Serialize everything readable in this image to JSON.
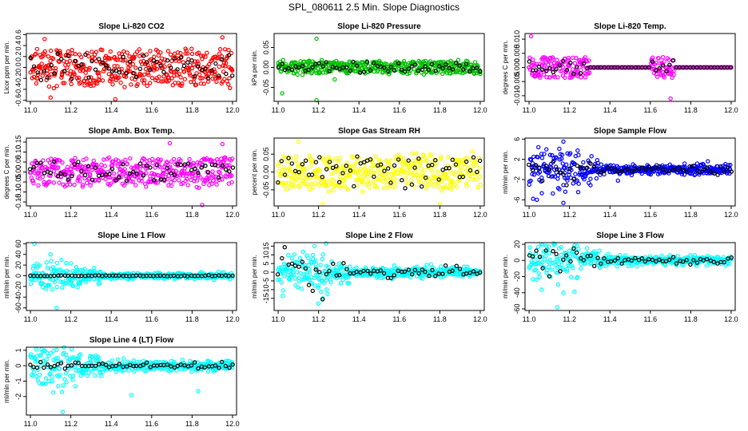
{
  "figure_title": "SPL_080611  2.5 Min. Slope Diagnostics",
  "colors": {
    "co2": "#ff0000",
    "pressure": "#00c000",
    "temp": "#ff00ff",
    "rh": "#ffff00",
    "sample": "#0000ff",
    "flow": "#00ffff",
    "highlight": "#000000"
  },
  "chart_data": [
    {
      "type": "scatter",
      "title": "Slope Li-820 CO2",
      "ylabel": "Licor ppm per min.",
      "xlim": [
        10.98,
        12.02
      ],
      "ylim": [
        -0.62,
        0.62
      ],
      "xticks": [
        11.0,
        11.2,
        11.4,
        11.6,
        11.8,
        12.0
      ],
      "xtick_labels": [
        "11.0",
        "11.2",
        "11.4",
        "11.6",
        "11.8",
        "12.0"
      ],
      "yticks": [
        -0.6,
        -0.4,
        -0.2,
        0.0,
        0.2,
        0.4,
        0.6
      ],
      "ytick_labels": [
        "-0.6",
        "-0.4",
        "-0.2",
        "0.0",
        "0.2",
        "0.4",
        "0.6"
      ],
      "series": [
        {
          "name": "all",
          "color": "#ff0000",
          "n": 420,
          "mode": "uniform",
          "spread": 0.25,
          "outliers": [
            [
              11.1,
              -0.55
            ],
            [
              11.42,
              -0.58
            ],
            [
              11.07,
              0.52
            ],
            [
              11.95,
              0.55
            ]
          ]
        },
        {
          "name": "highlight",
          "color": "#000000",
          "n": 60,
          "mode": "uniform",
          "spread": 0.18
        }
      ]
    },
    {
      "type": "scatter",
      "title": "Slope Li-820 Pressure",
      "ylabel": "kPa per min.",
      "xlim": [
        10.98,
        12.02
      ],
      "ylim": [
        -0.085,
        0.085
      ],
      "xticks": [
        11.0,
        11.2,
        11.4,
        11.6,
        11.8,
        12.0
      ],
      "xtick_labels": [
        "11.0",
        "11.2",
        "11.4",
        "11.6",
        "11.8",
        "12.0"
      ],
      "yticks": [
        -0.05,
        0.0,
        0.05
      ],
      "ytick_labels": [
        "-0.05",
        "0.00",
        "0.05"
      ],
      "series": [
        {
          "name": "all",
          "color": "#00c000",
          "n": 420,
          "mode": "uniform",
          "spread": 0.012,
          "outliers": [
            [
              11.19,
              0.072
            ],
            [
              11.19,
              -0.082
            ],
            [
              11.02,
              -0.065
            ],
            [
              11.28,
              -0.03
            ]
          ]
        },
        {
          "name": "highlight",
          "color": "#000000",
          "n": 60,
          "mode": "uniform",
          "spread": 0.01
        }
      ]
    },
    {
      "type": "scatter",
      "title": "Slope Li-820 Temp.",
      "ylabel": "degrees C per min.",
      "xlim": [
        10.98,
        12.02
      ],
      "ylim": [
        -0.012,
        0.012
      ],
      "xticks": [
        11.0,
        11.2,
        11.4,
        11.6,
        11.8,
        12.0
      ],
      "xtick_labels": [
        "11.0",
        "11.2",
        "11.4",
        "11.6",
        "11.8",
        "12.0"
      ],
      "yticks": [
        -0.01,
        -0.005,
        0.0,
        0.005,
        0.01
      ],
      "ytick_labels": [
        "-0.010",
        "-0.005",
        "0.000",
        "0.005",
        "0.010"
      ],
      "series": [
        {
          "name": "all",
          "color": "#ff00ff",
          "n": 420,
          "mode": "gaps",
          "spread": 0.0028,
          "flat_y": 0.0,
          "active": [
            [
              11.0,
              11.3
            ],
            [
              11.6,
              11.72
            ]
          ],
          "outliers": [
            [
              11.01,
              0.011
            ],
            [
              11.7,
              -0.011
            ]
          ]
        },
        {
          "name": "highlight",
          "color": "#000000",
          "n": 60,
          "mode": "gaps",
          "spread": 0.002,
          "flat_y": 0.0,
          "active": [
            [
              11.0,
              11.3
            ],
            [
              11.6,
              11.72
            ]
          ]
        }
      ]
    },
    {
      "type": "scatter",
      "title": "Slope Amb. Box Temp.",
      "ylabel": "degrees C per min.",
      "xlim": [
        10.98,
        12.02
      ],
      "ylim": [
        -0.17,
        0.17
      ],
      "xticks": [
        11.0,
        11.2,
        11.4,
        11.6,
        11.8,
        12.0
      ],
      "xtick_labels": [
        "11.0",
        "11.2",
        "11.4",
        "11.6",
        "11.8",
        "12.0"
      ],
      "yticks": [
        -0.15,
        -0.1,
        -0.05,
        0.0,
        0.05,
        0.1,
        0.15
      ],
      "ytick_labels": [
        "-0.15",
        "-0.10",
        "-0.05",
        "0.00",
        "0.05",
        "0.10",
        "0.15"
      ],
      "series": [
        {
          "name": "all",
          "color": "#ff00ff",
          "n": 420,
          "mode": "uniform",
          "spread": 0.05,
          "outliers": [
            [
              11.69,
              0.145
            ],
            [
              11.85,
              -0.165
            ],
            [
              11.95,
              0.14
            ]
          ]
        },
        {
          "name": "highlight",
          "color": "#000000",
          "n": 60,
          "mode": "uniform",
          "spread": 0.035
        }
      ]
    },
    {
      "type": "scatter",
      "title": "Slope Gas Stream RH",
      "ylabel": "percent per min.",
      "xlim": [
        10.98,
        12.02
      ],
      "ylim": [
        -0.095,
        0.095
      ],
      "xticks": [
        11.0,
        11.2,
        11.4,
        11.6,
        11.8,
        12.0
      ],
      "xtick_labels": [
        "11.0",
        "11.2",
        "11.4",
        "11.6",
        "11.8",
        "12.0"
      ],
      "yticks": [
        -0.05,
        0.0,
        0.05
      ],
      "ytick_labels": [
        "-0.05",
        "0.00",
        "0.05"
      ],
      "series": [
        {
          "name": "all",
          "color": "#ffff00",
          "n": 420,
          "mode": "uniform",
          "spread": 0.035,
          "outliers": [
            [
              11.1,
              0.085
            ],
            [
              11.22,
              -0.09
            ],
            [
              11.8,
              -0.09
            ]
          ]
        },
        {
          "name": "highlight",
          "color": "#000000",
          "n": 60,
          "mode": "uniform",
          "spread": 0.03
        }
      ]
    },
    {
      "type": "scatter",
      "title": "Slope Sample Flow",
      "ylabel": "ml/min per min.",
      "xlim": [
        10.98,
        12.02
      ],
      "ylim": [
        -7.2,
        6.2
      ],
      "xticks": [
        11.0,
        11.2,
        11.4,
        11.6,
        11.8,
        12.0
      ],
      "xtick_labels": [
        "11.0",
        "11.2",
        "11.4",
        "11.6",
        "11.8",
        "12.0"
      ],
      "yticks": [
        -6,
        -2,
        2,
        6
      ],
      "ytick_labels": [
        "-6",
        "-2",
        "2",
        "6"
      ],
      "series": [
        {
          "name": "all",
          "color": "#0000ff",
          "n": 420,
          "mode": "decay",
          "spread": 0.7,
          "outliers": [
            [
              11.17,
              5.5
            ],
            [
              11.02,
              -5.8
            ],
            [
              11.17,
              -6.6
            ],
            [
              11.15,
              -3.9
            ],
            [
              11.44,
              -2.2
            ]
          ]
        },
        {
          "name": "highlight",
          "color": "#000000",
          "n": 60,
          "mode": "decay",
          "spread": 0.5
        }
      ]
    },
    {
      "type": "scatter",
      "title": "Slope Line 1 Flow",
      "ylabel": "ml/min per min.",
      "xlim": [
        10.98,
        12.02
      ],
      "ylim": [
        -65,
        62
      ],
      "xticks": [
        11.0,
        11.2,
        11.4,
        11.6,
        11.8,
        12.0
      ],
      "xtick_labels": [
        "11.0",
        "11.2",
        "11.4",
        "11.6",
        "11.8",
        "12.0"
      ],
      "yticks": [
        -60,
        -40,
        -20,
        0,
        20,
        40,
        60
      ],
      "ytick_labels": [
        "-60",
        "-40",
        "-20",
        "0",
        "20",
        "40",
        "60"
      ],
      "series": [
        {
          "name": "all",
          "color": "#00ffff",
          "n": 420,
          "mode": "decay",
          "spread": 4,
          "outliers": [
            [
              11.02,
              60
            ],
            [
              11.1,
              40
            ],
            [
              11.13,
              -60
            ],
            [
              11.08,
              25
            ],
            [
              11.2,
              -15
            ]
          ]
        },
        {
          "name": "highlight",
          "color": "#000000",
          "n": 60,
          "mode": "flat",
          "spread": 0.5
        }
      ]
    },
    {
      "type": "scatter",
      "title": "Slope Line 2 Flow",
      "ylabel": "ml/min per min.",
      "xlim": [
        10.98,
        12.02
      ],
      "ylim": [
        -22,
        17
      ],
      "xticks": [
        11.0,
        11.2,
        11.4,
        11.6,
        11.8,
        12.0
      ],
      "xtick_labels": [
        "11.0",
        "11.2",
        "11.4",
        "11.6",
        "11.8",
        "12.0"
      ],
      "yticks": [
        -15,
        -10,
        -5,
        0,
        5,
        10,
        15
      ],
      "ytick_labels": [
        "-15",
        "-10",
        "-5",
        "0",
        "5",
        "10",
        "15"
      ],
      "series": [
        {
          "name": "all",
          "color": "#00ffff",
          "n": 420,
          "mode": "decay",
          "spread": 2,
          "outliers": [
            [
              11.18,
              15
            ],
            [
              11.2,
              -18
            ],
            [
              11.22,
              -15
            ],
            [
              11.15,
              8
            ],
            [
              11.24,
              -10
            ]
          ]
        },
        {
          "name": "highlight",
          "color": "#000000",
          "n": 60,
          "mode": "decay",
          "spread": 2
        }
      ]
    },
    {
      "type": "scatter",
      "title": "Slope Line 3 Flow",
      "ylabel": "ml/min per min.",
      "xlim": [
        10.98,
        12.02
      ],
      "ylim": [
        -62,
        22
      ],
      "xticks": [
        11.0,
        11.2,
        11.4,
        11.6,
        11.8,
        12.0
      ],
      "xtick_labels": [
        "11.0",
        "11.2",
        "11.4",
        "11.6",
        "11.8",
        "12.0"
      ],
      "yticks": [
        -60,
        -40,
        -20,
        0,
        20
      ],
      "ytick_labels": [
        "-60",
        "-40",
        "-20",
        "0",
        "20"
      ],
      "series": [
        {
          "name": "all",
          "color": "#00ffff",
          "n": 420,
          "mode": "decay",
          "spread": 4,
          "outliers": [
            [
              11.06,
              20
            ],
            [
              11.14,
              -58
            ],
            [
              11.17,
              -40
            ],
            [
              11.2,
              12
            ]
          ]
        },
        {
          "name": "highlight",
          "color": "#000000",
          "n": 60,
          "mode": "decay",
          "spread": 3
        }
      ]
    },
    {
      "type": "scatter",
      "title": "Slope Line 4 (LT) Flow",
      "ylabel": "ml/min per min.",
      "xlim": [
        10.98,
        12.02
      ],
      "ylim": [
        -3.2,
        1.2
      ],
      "xticks": [
        11.0,
        11.2,
        11.4,
        11.6,
        11.8,
        12.0
      ],
      "xtick_labels": [
        "11.0",
        "11.2",
        "11.4",
        "11.6",
        "11.8",
        "12.0"
      ],
      "yticks": [
        -2,
        -1,
        0,
        1
      ],
      "ytick_labels": [
        "-2",
        "-1",
        "0",
        "1"
      ],
      "series": [
        {
          "name": "all",
          "color": "#00ffff",
          "n": 420,
          "mode": "decay",
          "spread": 0.25,
          "outliers": [
            [
              11.03,
              1.05
            ],
            [
              11.1,
              0.8
            ],
            [
              11.14,
              -0.7
            ],
            [
              11.16,
              -3.0
            ],
            [
              11.5,
              -1.9
            ],
            [
              11.83,
              -1.65
            ]
          ]
        },
        {
          "name": "highlight",
          "color": "#000000",
          "n": 60,
          "mode": "flat",
          "spread": 0.1
        }
      ]
    }
  ]
}
